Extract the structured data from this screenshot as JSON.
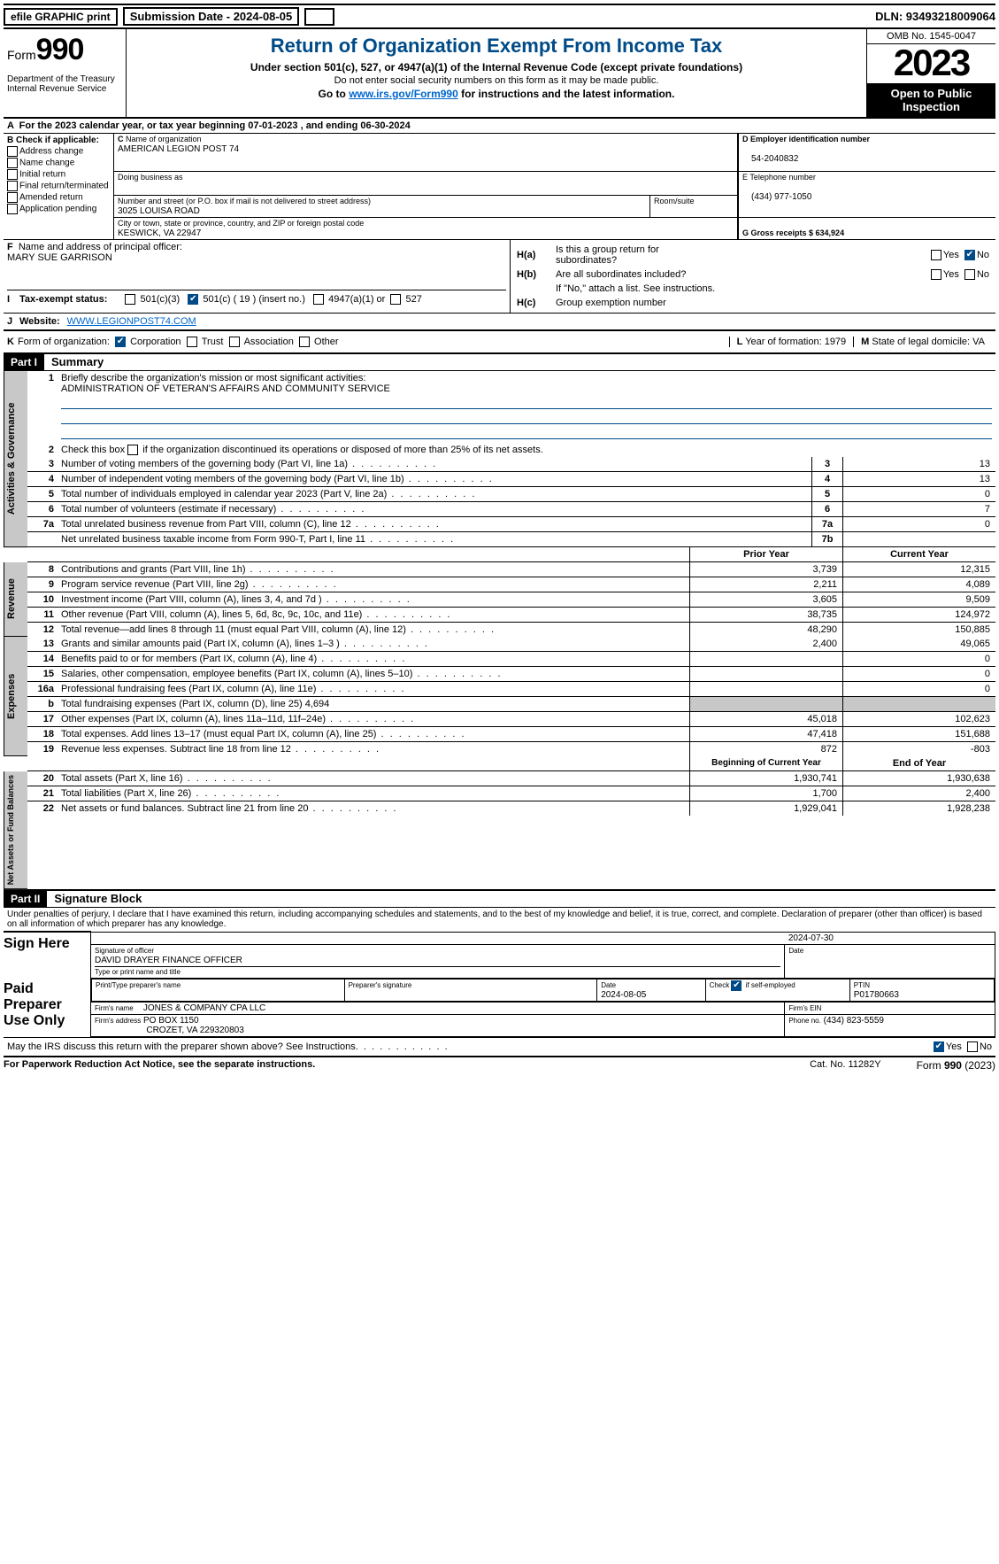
{
  "top": {
    "efile": "efile GRAPHIC print",
    "submission": "Submission Date - 2024-08-05",
    "dln": "DLN: 93493218009064"
  },
  "header": {
    "form_prefix": "Form",
    "form_num": "990",
    "title": "Return of Organization Exempt From Income Tax",
    "sub1": "Under section 501(c), 527, or 4947(a)(1) of the Internal Revenue Code (except private foundations)",
    "sub2": "Do not enter social security numbers on this form as it may be made public.",
    "sub3_pre": "Go to ",
    "sub3_link": "www.irs.gov/Form990",
    "sub3_post": " for instructions and the latest information.",
    "dept": "Department of the Treasury\nInternal Revenue Service",
    "omb": "OMB No. 1545-0047",
    "year": "2023",
    "inspect": "Open to Public Inspection"
  },
  "rowA": "For the 2023 calendar year, or tax year beginning 07-01-2023    , and ending 06-30-2024",
  "boxB": {
    "label": "Check if applicable:",
    "opts": [
      "Address change",
      "Name change",
      "Initial return",
      "Final return/terminated",
      "Amended return",
      "Application pending"
    ]
  },
  "boxC": {
    "name_lbl": "Name of organization",
    "name": "AMERICAN LEGION POST 74",
    "dba_lbl": "Doing business as",
    "addr_lbl": "Number and street (or P.O. box if mail is not delivered to street address)",
    "addr": "3025 LOUISA ROAD",
    "room_lbl": "Room/suite",
    "city_lbl": "City or town, state or province, country, and ZIP or foreign postal code",
    "city": "KESWICK, VA   22947"
  },
  "boxD": {
    "lbl": "D Employer identification number",
    "val": "54-2040832"
  },
  "boxE": {
    "lbl": "E Telephone number",
    "val": "(434) 977-1050"
  },
  "boxG": {
    "lbl": "G Gross receipts $ 634,924"
  },
  "boxF": {
    "lbl": "Name and address of principal officer:",
    "val": "MARY SUE GARRISON"
  },
  "boxH": {
    "a": "Is this a group return for subordinates?",
    "b": "Are all subordinates included?",
    "note": "If \"No,\" attach a list. See instructions.",
    "c": "Group exemption number"
  },
  "taxstatus": {
    "lbl": "Tax-exempt status:",
    "opts": [
      "501(c)(3)",
      "501(c) ( 19 ) (insert no.)",
      "4947(a)(1) or",
      "527"
    ]
  },
  "website": {
    "lbl": "Website:",
    "val": "WWW.LEGIONPOST74.COM"
  },
  "rowK": {
    "lbl": "Form of organization:",
    "opts": [
      "Corporation",
      "Trust",
      "Association",
      "Other"
    ],
    "L": "Year of formation: 1979",
    "M": "State of legal domicile: VA"
  },
  "part1": {
    "hdr": "Part I",
    "title": "Summary",
    "q1_lbl": "Briefly describe the organization's mission or most significant activities:",
    "q1_val": "ADMINISTRATION OF VETERAN'S AFFAIRS AND COMMUNITY SERVICE",
    "q2": "Check this box      if the organization discontinued its operations or disposed of more than 25% of its net assets.",
    "tabs": {
      "gov": "Activities & Governance",
      "rev": "Revenue",
      "exp": "Expenses",
      "net": "Net Assets or Fund Balances"
    },
    "gov_rows": [
      {
        "n": "3",
        "d": "Number of voting members of the governing body (Part VI, line 1a)",
        "b": "3",
        "v": "13"
      },
      {
        "n": "4",
        "d": "Number of independent voting members of the governing body (Part VI, line 1b)",
        "b": "4",
        "v": "13"
      },
      {
        "n": "5",
        "d": "Total number of individuals employed in calendar year 2023 (Part V, line 2a)",
        "b": "5",
        "v": "0"
      },
      {
        "n": "6",
        "d": "Total number of volunteers (estimate if necessary)",
        "b": "6",
        "v": "7"
      },
      {
        "n": "7a",
        "d": "Total unrelated business revenue from Part VIII, column (C), line 12",
        "b": "7a",
        "v": "0"
      },
      {
        "n": "",
        "d": "Net unrelated business taxable income from Form 990-T, Part I, line 11",
        "b": "7b",
        "v": ""
      }
    ],
    "col_prior": "Prior Year",
    "col_curr": "Current Year",
    "rev_rows": [
      {
        "n": "8",
        "d": "Contributions and grants (Part VIII, line 1h)",
        "p": "3,739",
        "c": "12,315"
      },
      {
        "n": "9",
        "d": "Program service revenue (Part VIII, line 2g)",
        "p": "2,211",
        "c": "4,089"
      },
      {
        "n": "10",
        "d": "Investment income (Part VIII, column (A), lines 3, 4, and 7d )",
        "p": "3,605",
        "c": "9,509"
      },
      {
        "n": "11",
        "d": "Other revenue (Part VIII, column (A), lines 5, 6d, 8c, 9c, 10c, and 11e)",
        "p": "38,735",
        "c": "124,972"
      },
      {
        "n": "12",
        "d": "Total revenue—add lines 8 through 11 (must equal Part VIII, column (A), line 12)",
        "p": "48,290",
        "c": "150,885"
      }
    ],
    "exp_rows": [
      {
        "n": "13",
        "d": "Grants and similar amounts paid (Part IX, column (A), lines 1–3 )",
        "p": "2,400",
        "c": "49,065"
      },
      {
        "n": "14",
        "d": "Benefits paid to or for members (Part IX, column (A), line 4)",
        "p": "",
        "c": "0"
      },
      {
        "n": "15",
        "d": "Salaries, other compensation, employee benefits (Part IX, column (A), lines 5–10)",
        "p": "",
        "c": "0"
      },
      {
        "n": "16a",
        "d": "Professional fundraising fees (Part IX, column (A), line 11e)",
        "p": "",
        "c": "0"
      },
      {
        "n": "b",
        "d": "Total fundraising expenses (Part IX, column (D), line 25) 4,694",
        "p": "grey",
        "c": "grey"
      },
      {
        "n": "17",
        "d": "Other expenses (Part IX, column (A), lines 11a–11d, 11f–24e)",
        "p": "45,018",
        "c": "102,623"
      },
      {
        "n": "18",
        "d": "Total expenses. Add lines 13–17 (must equal Part IX, column (A), line 25)",
        "p": "47,418",
        "c": "151,688"
      },
      {
        "n": "19",
        "d": "Revenue less expenses. Subtract line 18 from line 12",
        "p": "872",
        "c": "-803"
      }
    ],
    "col_begin": "Beginning of Current Year",
    "col_end": "End of Year",
    "net_rows": [
      {
        "n": "20",
        "d": "Total assets (Part X, line 16)",
        "p": "1,930,741",
        "c": "1,930,638"
      },
      {
        "n": "21",
        "d": "Total liabilities (Part X, line 26)",
        "p": "1,700",
        "c": "2,400"
      },
      {
        "n": "22",
        "d": "Net assets or fund balances. Subtract line 21 from line 20",
        "p": "1,929,041",
        "c": "1,928,238"
      }
    ]
  },
  "part2": {
    "hdr": "Part II",
    "title": "Signature Block",
    "decl": "Under penalties of perjury, I declare that I have examined this return, including accompanying schedules and statements, and to the best of my knowledge and belief, it is true, correct, and complete. Declaration of preparer (other than officer) is based on all information of which preparer has any knowledge.",
    "sign_here": "Sign Here",
    "sig_date": "2024-07-30",
    "sig_officer_lbl": "Signature of officer",
    "sig_officer": "DAVID DRAYER  FINANCE OFFICER",
    "sig_name_lbl": "Type or print name and title",
    "date_lbl": "Date",
    "paid": "Paid Preparer Use Only",
    "prep_name_lbl": "Print/Type preparer's name",
    "prep_sig_lbl": "Preparer's signature",
    "prep_date_lbl": "Date",
    "prep_date": "2024-08-05",
    "prep_check": "Check         if self-employed",
    "ptin_lbl": "PTIN",
    "ptin": "P01780663",
    "firm_name_lbl": "Firm's name",
    "firm_name": "JONES & COMPANY CPA LLC",
    "firm_ein_lbl": "Firm's EIN",
    "firm_addr_lbl": "Firm's address",
    "firm_addr1": "PO BOX 1150",
    "firm_addr2": "CROZET, VA   229320803",
    "firm_phone_lbl": "Phone no.",
    "firm_phone": "(434) 823-5559",
    "discuss": "May the IRS discuss this return with the preparer shown above? See Instructions."
  },
  "footer": {
    "l": "For Paperwork Reduction Act Notice, see the separate instructions.",
    "m": "Cat. No. 11282Y",
    "r_pre": "Form ",
    "r_form": "990",
    "r_post": " (2023)"
  }
}
